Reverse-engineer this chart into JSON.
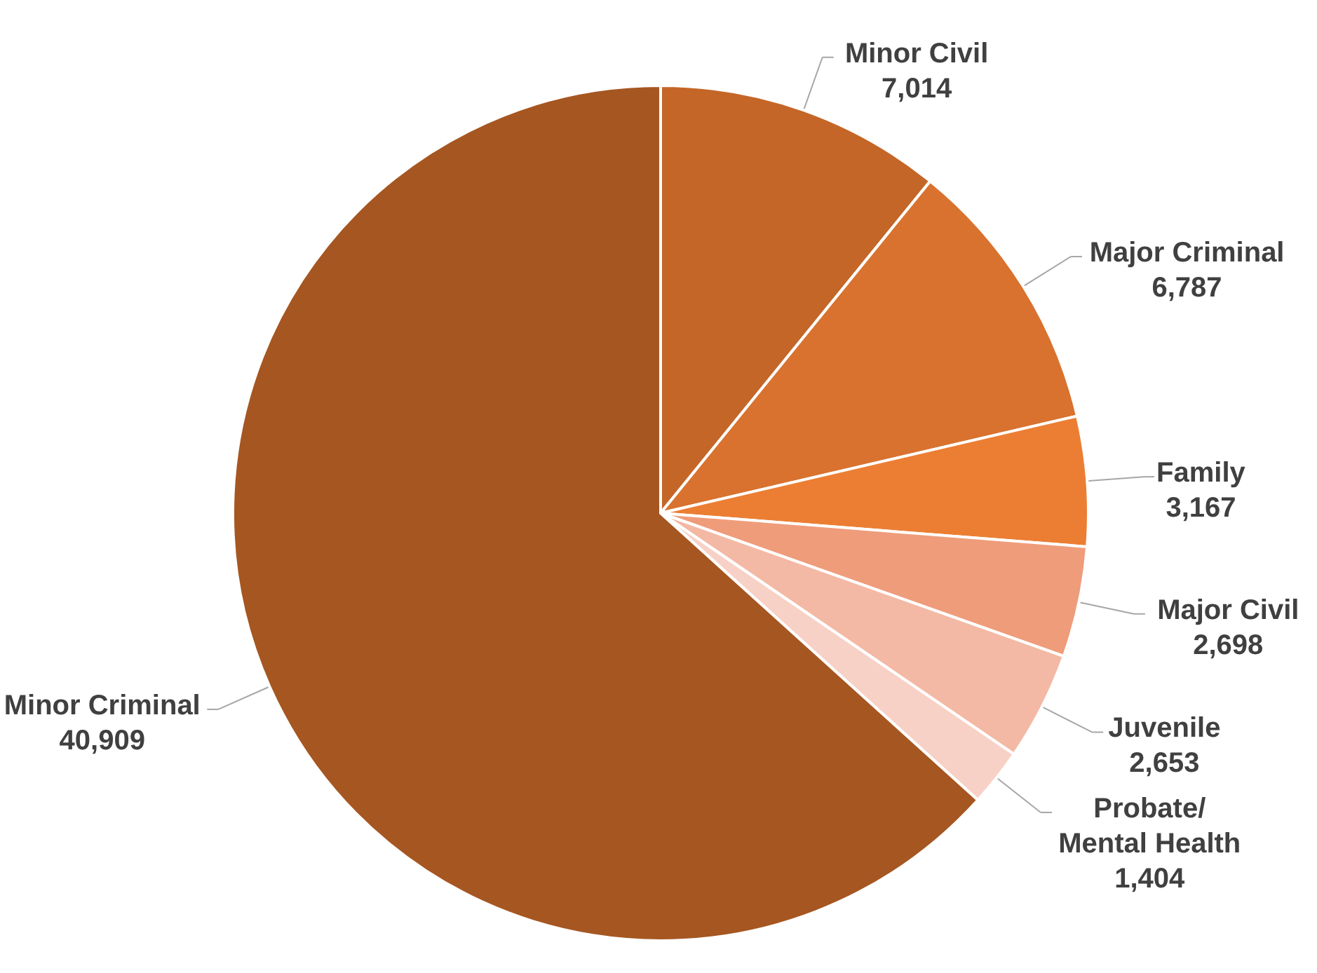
{
  "chart_data": {
    "type": "pie",
    "categories": [
      "Minor Civil",
      "Major Criminal",
      "Family",
      "Major Civil",
      "Juvenile",
      "Probate/\nMental Health",
      "Minor Criminal"
    ],
    "values": [
      7014,
      6787,
      3167,
      2698,
      2653,
      1404,
      40909
    ],
    "value_labels": [
      "7,014",
      "6,787",
      "3,167",
      "2,698",
      "2,653",
      "1,404",
      "40,909"
    ],
    "colors": [
      "#c46628",
      "#d8722e",
      "#ec7e33",
      "#ef9c7a",
      "#f3b9a4",
      "#f8d1c6",
      "#a65621"
    ],
    "legend": false
  }
}
